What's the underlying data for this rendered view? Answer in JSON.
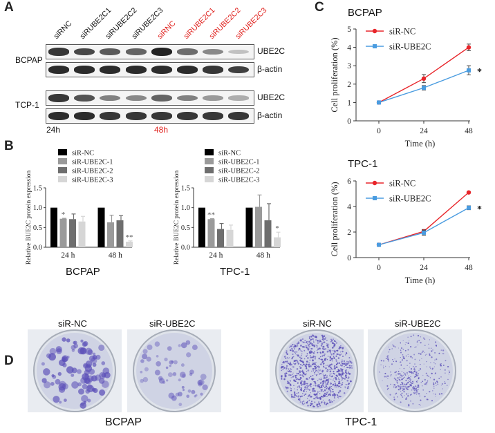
{
  "panels": {
    "A": "A",
    "B": "B",
    "C": "C",
    "D": "D"
  },
  "panelA": {
    "lanes": [
      {
        "label": "siRNC",
        "color": "#111111"
      },
      {
        "label": "siRUBE2C1",
        "color": "#111111"
      },
      {
        "label": "siRUBE2C2",
        "color": "#111111"
      },
      {
        "label": "siRUBE2C3",
        "color": "#111111"
      },
      {
        "label": "siRNC",
        "color": "#e0211d"
      },
      {
        "label": "siRUBE2C1",
        "color": "#e0211d"
      },
      {
        "label": "siRUBE2C2",
        "color": "#e0211d"
      },
      {
        "label": "siRUBE2C3",
        "color": "#e0211d"
      }
    ],
    "cell_lines": [
      "BCPAP",
      "TCP-1"
    ],
    "bands": [
      "UBE2C",
      "β-actin",
      "UBE2C",
      "β-actin"
    ],
    "time_24": "24h",
    "time_48": "48h",
    "time_48_color": "#e0211d",
    "blots": [
      {
        "name": "bcpap-ube2c",
        "intensity": [
          0.85,
          0.75,
          0.65,
          0.6,
          0.95,
          0.55,
          0.4,
          0.1
        ]
      },
      {
        "name": "bcpap-actin",
        "intensity": [
          0.9,
          0.9,
          0.9,
          0.9,
          0.9,
          0.9,
          0.85,
          0.8
        ]
      },
      {
        "name": "tcp1-ube2c",
        "intensity": [
          0.85,
          0.7,
          0.45,
          0.4,
          0.6,
          0.45,
          0.3,
          0.2
        ]
      },
      {
        "name": "tcp1-actin",
        "intensity": [
          0.9,
          0.9,
          0.85,
          0.85,
          0.85,
          0.85,
          0.85,
          0.85
        ]
      }
    ]
  },
  "panelB": {
    "ylabel": "Relative BUE2C protein expression",
    "legend": [
      "siR-NC",
      "siR-UBE2C-1",
      "siR-UBE2C-2",
      "siR-UBE2C-3"
    ],
    "colors": [
      "#000000",
      "#9a9a9a",
      "#6e6e6e",
      "#d6d6d6"
    ],
    "bcpap_title": "BCPAP",
    "tpc1_title": "TPC-1"
  },
  "panelC": {
    "top_title": "BCPAP",
    "bottom_title": "TPC-1",
    "xlabel": "Time (h)",
    "ylabel": "Cell proliferation (%)",
    "legend": [
      "siR-NC",
      "siR-UBE2C"
    ],
    "colors": [
      "#e8252a",
      "#4a9ce0"
    ]
  },
  "panelD": {
    "labels": [
      "siR-NC",
      "siR-UBE2C",
      "siR-NC",
      "siR-UBE2C"
    ],
    "captions": [
      "BCPAP",
      "TPC-1"
    ],
    "dish_color": "#5b4fb8",
    "densities": [
      "high-large-colonies",
      "medium-large-colonies",
      "very-high-small-colonies",
      "medium-small-colonies"
    ]
  },
  "chart_data": [
    {
      "type": "bar",
      "title": "BCPAP",
      "ylabel": "Relative BUE2C protein expression",
      "categories": [
        "24 h",
        "48 h"
      ],
      "ylim": [
        0,
        1.5
      ],
      "yticks": [
        "0.0",
        "0.5",
        "1.0",
        "1.5"
      ],
      "series": [
        {
          "name": "siR-NC",
          "values": [
            1.0,
            1.0
          ],
          "errors": [
            0,
            0
          ]
        },
        {
          "name": "siR-UBE2C-1",
          "values": [
            0.72,
            0.63
          ],
          "errors": [
            0.01,
            0.18
          ]
        },
        {
          "name": "siR-UBE2C-2",
          "values": [
            0.71,
            0.68
          ],
          "errors": [
            0.13,
            0.12
          ]
        },
        {
          "name": "siR-UBE2C-3",
          "values": [
            0.65,
            0.14
          ],
          "errors": [
            0.13,
            0.02
          ]
        }
      ],
      "annotations": [
        {
          "category": "24 h",
          "series": "siR-UBE2C-1",
          "text": "*"
        },
        {
          "category": "48 h",
          "series": "siR-UBE2C-3",
          "text": "**"
        }
      ]
    },
    {
      "type": "bar",
      "title": "TPC-1",
      "ylabel": "Relative BUE2C protein expression",
      "categories": [
        "24 h",
        "48 h"
      ],
      "ylim": [
        0,
        1.5
      ],
      "yticks": [
        "0.0",
        "0.5",
        "1.0",
        "1.5"
      ],
      "series": [
        {
          "name": "siR-NC",
          "values": [
            1.0,
            1.0
          ],
          "errors": [
            0,
            0
          ]
        },
        {
          "name": "siR-UBE2C-1",
          "values": [
            0.71,
            1.02
          ],
          "errors": [
            0.01,
            0.3
          ]
        },
        {
          "name": "siR-UBE2C-2",
          "values": [
            0.46,
            0.68
          ],
          "errors": [
            0.14,
            0.42
          ]
        },
        {
          "name": "siR-UBE2C-3",
          "values": [
            0.44,
            0.25
          ],
          "errors": [
            0.12,
            0.13
          ]
        }
      ],
      "annotations": [
        {
          "category": "24 h",
          "series": "siR-UBE2C-1",
          "text": "**"
        },
        {
          "category": "48 h",
          "series": "siR-UBE2C-3",
          "text": "*"
        }
      ]
    },
    {
      "type": "line",
      "title": "BCPAP",
      "xlabel": "Time (h)",
      "ylabel": "Cell proliferation (%)",
      "x": [
        0,
        24,
        48
      ],
      "xticks": [
        "0",
        "24",
        "48"
      ],
      "ylim": [
        0,
        5
      ],
      "yticks": [
        "0",
        "1",
        "2",
        "3",
        "4",
        "5"
      ],
      "series": [
        {
          "name": "siR-NC",
          "values": [
            1.0,
            2.3,
            4.0
          ],
          "errors": [
            0,
            0.22,
            0.18
          ]
        },
        {
          "name": "siR-UBE2C",
          "values": [
            1.0,
            1.8,
            2.75
          ],
          "errors": [
            0,
            0.12,
            0.25
          ]
        }
      ],
      "annotations": [
        {
          "x": 48,
          "text": "*"
        }
      ]
    },
    {
      "type": "line",
      "title": "TPC-1",
      "xlabel": "Time (h)",
      "ylabel": "Cell proliferation (%)",
      "x": [
        0,
        24,
        48
      ],
      "xticks": [
        "0",
        "24",
        "48"
      ],
      "ylim": [
        0,
        6
      ],
      "yticks": [
        "0",
        "2",
        "4",
        "6"
      ],
      "series": [
        {
          "name": "siR-NC",
          "values": [
            1.0,
            2.05,
            5.1
          ],
          "errors": [
            0,
            0.15,
            0.05
          ]
        },
        {
          "name": "siR-UBE2C",
          "values": [
            1.0,
            1.95,
            3.9
          ],
          "errors": [
            0,
            0.2,
            0.15
          ]
        }
      ],
      "annotations": [
        {
          "x": 48,
          "text": "*"
        }
      ]
    }
  ]
}
